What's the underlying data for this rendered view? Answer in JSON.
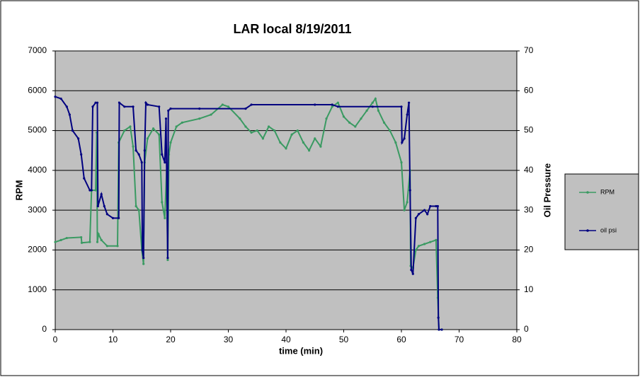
{
  "chart_data": {
    "type": "line",
    "title": "LAR local 8/19/2011",
    "xlabel": "time (min)",
    "ylabel": "RPM",
    "y2label": "Oil Pressure",
    "xlim": [
      0,
      80
    ],
    "xticks": [
      0,
      10,
      20,
      30,
      40,
      50,
      60,
      70,
      80
    ],
    "ylim": [
      0,
      7000
    ],
    "yticks": [
      0,
      1000,
      2000,
      3000,
      4000,
      5000,
      6000,
      7000
    ],
    "y2lim": [
      0,
      70
    ],
    "y2ticks": [
      0,
      10,
      20,
      30,
      40,
      50,
      60,
      70
    ],
    "grid": true,
    "legend": "right",
    "series": [
      {
        "name": "RPM",
        "color": "#3a9a62",
        "x": [
          0,
          1,
          2,
          4.5,
          4.6,
          6,
          6.3,
          7,
          7.2,
          7.3,
          7.5,
          8,
          9,
          10.8,
          11,
          12,
          13,
          13.5,
          14,
          14.5,
          15,
          15.3,
          15.5,
          16,
          17,
          18,
          18.5,
          19,
          19.3,
          19.5,
          19.7,
          20,
          21,
          22,
          25,
          27,
          29,
          30,
          32,
          33,
          34,
          35,
          36,
          37,
          38,
          39,
          40,
          41,
          42,
          43,
          44,
          45,
          46,
          47,
          48,
          49,
          50,
          51,
          52,
          53,
          54,
          55,
          55.5,
          56,
          57,
          58,
          59,
          60,
          60.5,
          61,
          61.5,
          61.6,
          62,
          62.5,
          63,
          64,
          65,
          66,
          66.3,
          66.5,
          67
        ],
        "values": [
          2200,
          2250,
          2300,
          2320,
          2180,
          2200,
          3500,
          3500,
          4950,
          2200,
          2400,
          2250,
          2100,
          2100,
          4700,
          5000,
          5100,
          4600,
          3100,
          3000,
          2000,
          1650,
          4200,
          4800,
          5050,
          4900,
          3200,
          2800,
          4000,
          1750,
          4400,
          4700,
          5100,
          5200,
          5300,
          5400,
          5650,
          5600,
          5300,
          5100,
          4950,
          5000,
          4800,
          5100,
          5000,
          4700,
          4550,
          4900,
          5000,
          4700,
          4500,
          4800,
          4600,
          5300,
          5600,
          5700,
          5350,
          5200,
          5100,
          5300,
          5500,
          5700,
          5800,
          5500,
          5200,
          5000,
          4700,
          4200,
          3000,
          3200,
          4000,
          1600,
          1550,
          2000,
          2100,
          2150,
          2200,
          2250,
          800,
          0,
          0
        ]
      },
      {
        "name": "oil psi",
        "color": "#000080",
        "axis": "y2",
        "x": [
          0,
          1,
          2,
          2.5,
          3,
          4,
          4.5,
          5,
          6,
          6.3,
          6.5,
          7,
          7.3,
          7.4,
          8,
          8.5,
          9,
          10,
          11,
          11.1,
          12,
          13.5,
          14,
          14.5,
          15,
          15.1,
          15.3,
          15.5,
          15.7,
          16,
          18,
          18.5,
          19,
          19.2,
          19.5,
          19.6,
          20,
          25,
          33,
          34,
          45,
          48,
          49,
          55,
          60,
          60.1,
          60.5,
          61,
          61.3,
          61.5,
          61.7,
          62,
          62.5,
          63,
          64,
          64.5,
          65,
          66,
          66.3,
          66.4,
          66.5,
          67
        ],
        "values": [
          58.5,
          58,
          56,
          54,
          50,
          48,
          44,
          38,
          35,
          35,
          56,
          57,
          57,
          31,
          34,
          31,
          29,
          28,
          28,
          57,
          56,
          56,
          45,
          44,
          42,
          20,
          18,
          45,
          57,
          56.5,
          56,
          44,
          42,
          53,
          18,
          55,
          55.5,
          55.5,
          55.5,
          56.5,
          56.5,
          56.5,
          56,
          56,
          56,
          47,
          48,
          54,
          57,
          35,
          15,
          14,
          28,
          29,
          30,
          29,
          31,
          31,
          31,
          3,
          0,
          0
        ]
      }
    ]
  }
}
